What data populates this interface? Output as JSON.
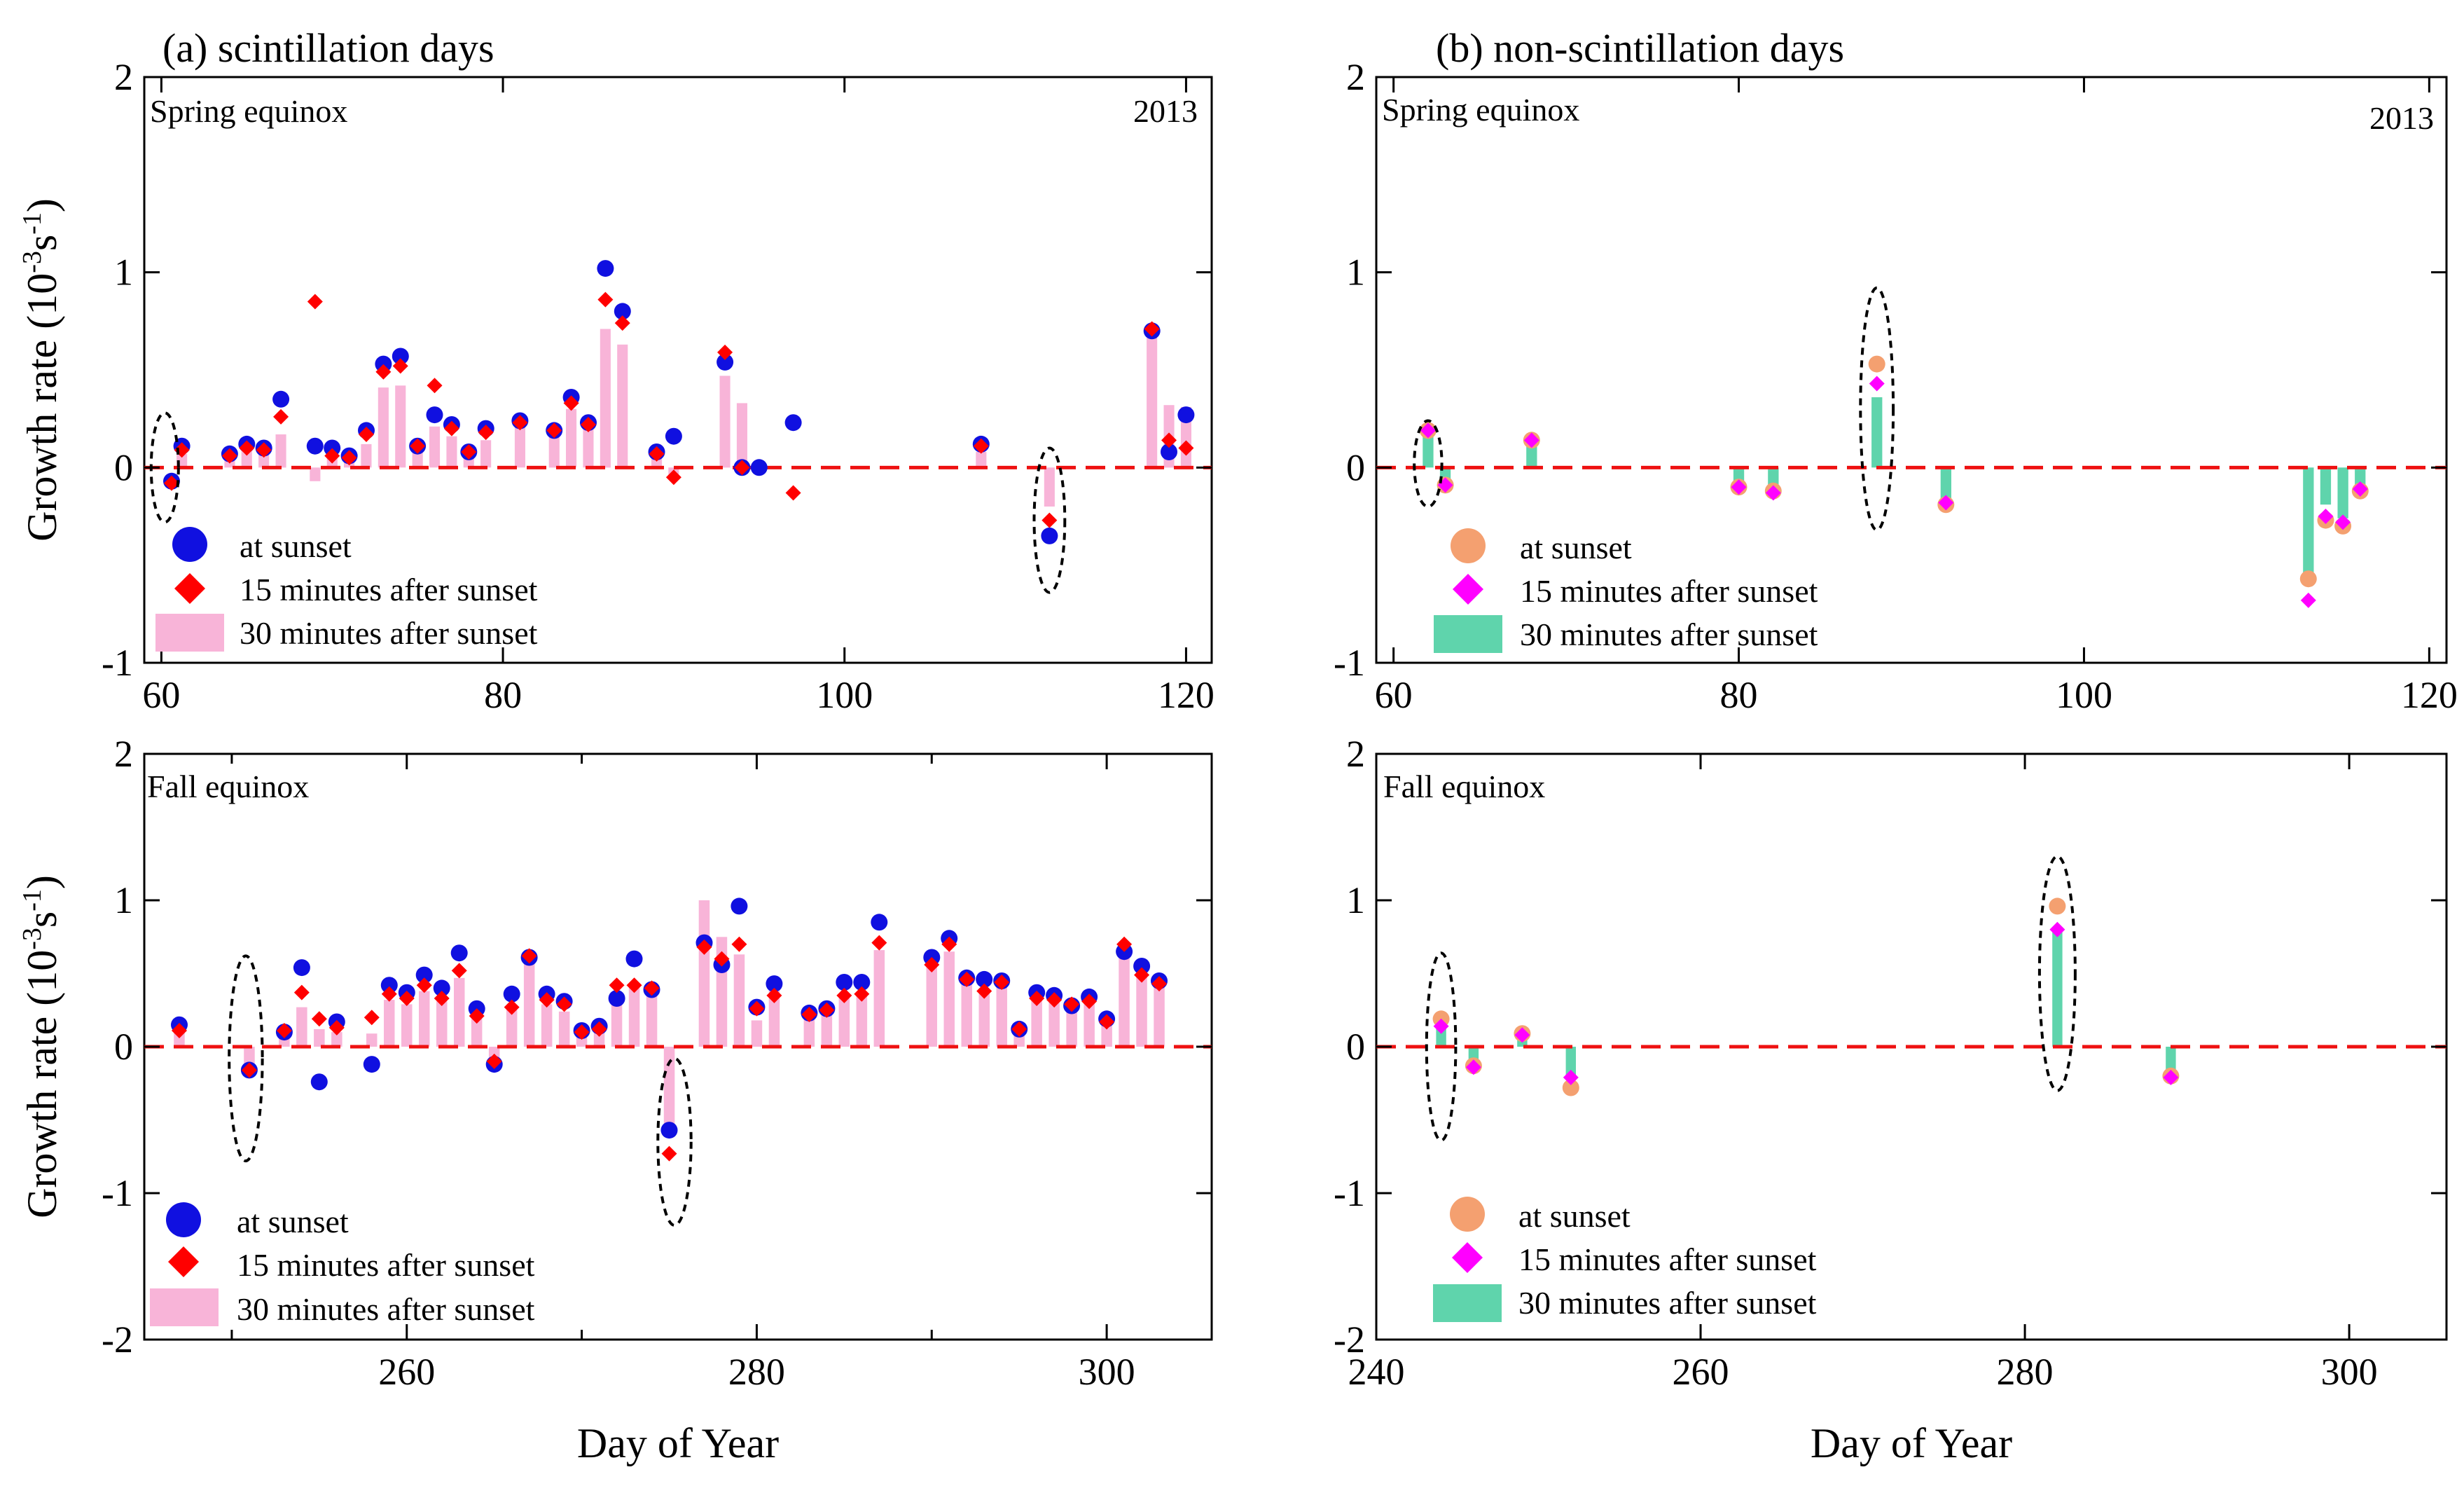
{
  "figure": {
    "year_label": "2013",
    "x_title": "Day of Year",
    "y_title": "Growth rate (10",
    "y_title_exp": "-3",
    "y_title_unit": "s",
    "y_title_exp2": "-1",
    "y_title_close": ")"
  },
  "legend": {
    "at_sunset": "at sunset",
    "after15": "15 minutes after sunset",
    "after30": "30 minutes after sunset"
  },
  "colors": {
    "sunset_scint": "#1010e0",
    "diamond": "#ff0000",
    "bar_scint": "#f8b4d8",
    "sunset_non": "#f4a070",
    "diamond_non": "#ff00ff",
    "bar_non": "#5fd4ac",
    "zero_line": "#ee1111"
  },
  "chart_data": [
    {
      "id": "a_spring",
      "type": "bar",
      "title": "(a)  scintillation days",
      "season": "Spring equinox",
      "show_year": true,
      "xlim": [
        59,
        121.5
      ],
      "ylim": [
        -1,
        2
      ],
      "xticks": [
        60,
        80,
        100,
        120
      ],
      "xticklabels": [
        "60",
        "80",
        "100",
        "120"
      ],
      "yticks": [
        -1,
        0,
        1,
        2
      ],
      "scheme": "scint",
      "ellipses": [
        {
          "x": 60.2,
          "y": 0.0,
          "rx": 0.8,
          "ry": 0.28
        },
        {
          "x": 112.0,
          "y": -0.27,
          "rx": 0.9,
          "ry": 0.37
        }
      ],
      "days": [
        60.6,
        61.2,
        64,
        65,
        66,
        67,
        69,
        70,
        71,
        72,
        73,
        74,
        75,
        76,
        77,
        78,
        79,
        81,
        83,
        84,
        85,
        86,
        87,
        89,
        90,
        93,
        94,
        95,
        97,
        108,
        112,
        118,
        119,
        120
      ],
      "sunset": [
        -0.07,
        0.11,
        0.07,
        0.12,
        0.1,
        0.35,
        0.11,
        0.1,
        0.06,
        0.19,
        0.53,
        0.57,
        0.11,
        0.27,
        0.22,
        0.08,
        0.2,
        0.24,
        0.19,
        0.36,
        0.23,
        1.02,
        0.8,
        0.08,
        0.16,
        0.54,
        0.0,
        0.0,
        0.23,
        0.12,
        -0.35,
        0.7,
        0.08,
        0.27
      ],
      "after15": [
        -0.08,
        0.09,
        0.06,
        0.1,
        0.09,
        0.26,
        0.85,
        0.06,
        0.05,
        0.17,
        0.49,
        0.52,
        0.11,
        0.42,
        0.2,
        0.08,
        0.18,
        0.23,
        0.19,
        0.33,
        0.22,
        0.86,
        0.74,
        0.07,
        -0.05,
        0.59,
        0.0,
        null,
        -0.13,
        0.11,
        -0.27,
        0.71,
        0.14,
        0.1
      ],
      "after30": [
        0.0,
        0.07,
        0.06,
        0.09,
        0.08,
        0.17,
        -0.07,
        0.07,
        0.05,
        0.12,
        0.41,
        0.42,
        0.09,
        0.21,
        0.16,
        0.07,
        0.14,
        0.23,
        0.17,
        0.3,
        0.21,
        0.71,
        0.63,
        0.05,
        -0.05,
        0.47,
        0.33,
        0.0,
        0.0,
        0.08,
        -0.2,
        0.68,
        0.32,
        0.31
      ]
    },
    {
      "id": "b_spring",
      "type": "bar",
      "title": "(b) non-scintillation days",
      "season": "Spring equinox",
      "show_year": true,
      "xlim": [
        59,
        121
      ],
      "ylim": [
        -1,
        2
      ],
      "xticks": [
        60,
        80,
        100,
        120
      ],
      "xticklabels": [
        "60",
        "80",
        "100",
        "120"
      ],
      "yticks": [
        -1,
        0,
        1,
        2
      ],
      "scheme": "non",
      "ellipses": [
        {
          "x": 62.0,
          "y": 0.02,
          "rx": 0.8,
          "ry": 0.22
        },
        {
          "x": 88.0,
          "y": 0.3,
          "rx": 0.95,
          "ry": 0.62
        }
      ],
      "days": [
        62,
        63,
        68,
        80,
        82,
        88,
        92,
        113,
        114,
        115,
        116
      ],
      "sunset": [
        0.19,
        -0.09,
        0.14,
        -0.1,
        -0.12,
        0.53,
        -0.19,
        -0.57,
        -0.27,
        -0.3,
        -0.12
      ],
      "after15": [
        0.19,
        -0.09,
        0.14,
        -0.1,
        -0.13,
        0.43,
        -0.18,
        -0.68,
        -0.25,
        -0.28,
        -0.11
      ],
      "after30": [
        0.2,
        -0.09,
        0.12,
        -0.1,
        -0.12,
        0.36,
        -0.18,
        -0.58,
        -0.19,
        -0.26,
        -0.09
      ]
    },
    {
      "id": "a_fall",
      "type": "bar",
      "title": "",
      "season": "Fall equinox",
      "show_year": false,
      "xlim": [
        245,
        306
      ],
      "ylim": [
        -2,
        2
      ],
      "xticks": [
        260,
        280,
        300
      ],
      "xticklabels": [
        "260",
        "280",
        "300"
      ],
      "minor_xticks": [
        250,
        270,
        290
      ],
      "yticks": [
        -2,
        -1,
        0,
        1,
        2
      ],
      "scheme": "scint",
      "ellipses": [
        {
          "x": 250.8,
          "y": -0.08,
          "rx": 0.95,
          "ry": 0.7
        },
        {
          "x": 275.3,
          "y": -0.65,
          "rx": 0.95,
          "ry": 0.57
        }
      ],
      "days": [
        247,
        251,
        253,
        254,
        255,
        256,
        258,
        259,
        260,
        261,
        262,
        263,
        264,
        265,
        266,
        267,
        268,
        269,
        270,
        271,
        272,
        273,
        274,
        275,
        277,
        278,
        279,
        280,
        281,
        283,
        284,
        285,
        286,
        287,
        290,
        291,
        292,
        293,
        294,
        295,
        296,
        297,
        298,
        299,
        300,
        301,
        302,
        303
      ],
      "sunset": [
        0.15,
        -0.16,
        0.1,
        0.54,
        -0.24,
        0.17,
        -0.12,
        0.42,
        0.37,
        0.49,
        0.4,
        0.64,
        0.26,
        -0.12,
        0.36,
        0.61,
        0.36,
        0.31,
        0.11,
        0.14,
        0.33,
        0.6,
        0.39,
        -0.57,
        0.71,
        0.56,
        0.96,
        0.27,
        0.43,
        0.23,
        0.26,
        0.44,
        0.44,
        0.85,
        0.61,
        0.74,
        0.47,
        0.46,
        0.45,
        0.12,
        0.37,
        0.35,
        0.28,
        0.34,
        0.19,
        0.65,
        0.55,
        0.45
      ],
      "after15": [
        0.11,
        -0.16,
        0.11,
        0.37,
        0.19,
        0.13,
        0.2,
        0.36,
        0.33,
        0.42,
        0.33,
        0.52,
        0.21,
        -0.1,
        0.27,
        0.62,
        0.32,
        0.29,
        0.1,
        0.12,
        0.42,
        0.42,
        0.4,
        -0.73,
        0.68,
        0.6,
        0.7,
        0.26,
        0.35,
        0.22,
        0.25,
        0.35,
        0.36,
        0.71,
        0.56,
        0.7,
        0.46,
        0.38,
        0.44,
        0.12,
        0.33,
        0.32,
        0.29,
        0.31,
        0.17,
        0.7,
        0.49,
        0.43
      ],
      "after30": [
        0.14,
        -0.15,
        0.09,
        0.27,
        0.12,
        0.1,
        0.09,
        0.32,
        0.29,
        0.38,
        0.31,
        0.47,
        0.21,
        -0.08,
        0.26,
        0.62,
        0.29,
        0.24,
        0.09,
        0.12,
        0.3,
        0.41,
        0.35,
        -0.6,
        1.0,
        0.75,
        0.63,
        0.18,
        0.4,
        0.2,
        0.23,
        0.34,
        0.35,
        0.66,
        0.57,
        0.65,
        0.48,
        0.37,
        0.44,
        0.13,
        0.33,
        0.33,
        0.27,
        0.3,
        0.18,
        0.67,
        0.51,
        0.42
      ]
    },
    {
      "id": "b_fall",
      "type": "bar",
      "title": "",
      "season": "Fall equinox",
      "show_year": false,
      "xlim": [
        240,
        306
      ],
      "ylim": [
        -2,
        2
      ],
      "xticks": [
        240,
        260,
        280,
        300
      ],
      "xticklabels": [
        "240",
        "260",
        "280",
        "300"
      ],
      "yticks": [
        -2,
        -1,
        0,
        1,
        2
      ],
      "scheme": "non",
      "ellipses": [
        {
          "x": 244.0,
          "y": 0.0,
          "rx": 0.9,
          "ry": 0.64
        },
        {
          "x": 282.0,
          "y": 0.5,
          "rx": 1.1,
          "ry": 0.8
        }
      ],
      "days": [
        244,
        246,
        249,
        252,
        282,
        289
      ],
      "sunset": [
        0.19,
        -0.13,
        0.09,
        -0.28,
        0.96,
        -0.2
      ],
      "after15": [
        0.14,
        -0.14,
        0.08,
        -0.21,
        0.8,
        -0.21
      ],
      "after30": [
        0.13,
        -0.14,
        0.07,
        -0.22,
        0.79,
        -0.21
      ]
    }
  ]
}
